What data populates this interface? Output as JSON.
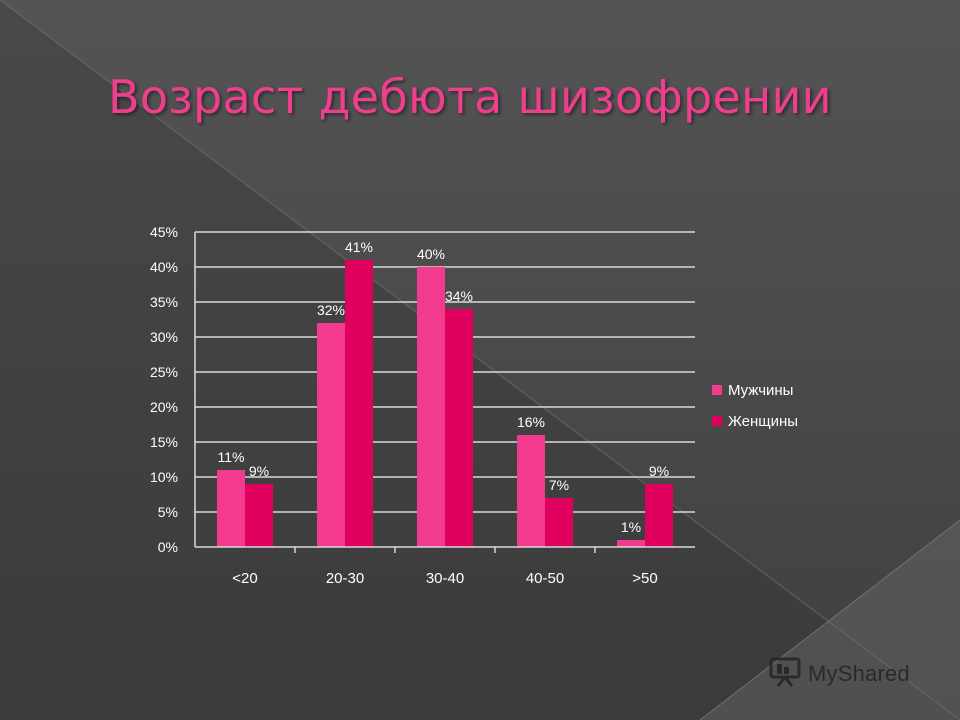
{
  "slide": {
    "title": "Возраст дебюта шизофрении",
    "watermark": "MyShared"
  },
  "colors": {
    "background": "#4b4b4b",
    "title": "#ef3f8c",
    "men": "#f23a8e",
    "women": "#e0005d",
    "grid": "#d9d9d9",
    "text": "#ffffff"
  },
  "chart_data": {
    "type": "bar",
    "categories": [
      "<20",
      "20-30",
      "30-40",
      "40-50",
      ">50"
    ],
    "series": [
      {
        "name": "Мужчины",
        "values": [
          11,
          32,
          40,
          16,
          1
        ],
        "labels": [
          "11%",
          "32%",
          "40%",
          "16%",
          "1%"
        ]
      },
      {
        "name": "Женщины",
        "values": [
          9,
          41,
          34,
          7,
          9
        ],
        "labels": [
          "9%",
          "41%",
          "34%",
          "7%",
          "9%"
        ]
      }
    ],
    "ylim": [
      0,
      45
    ],
    "yticks": [
      "0%",
      "5%",
      "10%",
      "15%",
      "20%",
      "25%",
      "30%",
      "35%",
      "40%",
      "45%"
    ],
    "grid": true,
    "legend": "right"
  }
}
